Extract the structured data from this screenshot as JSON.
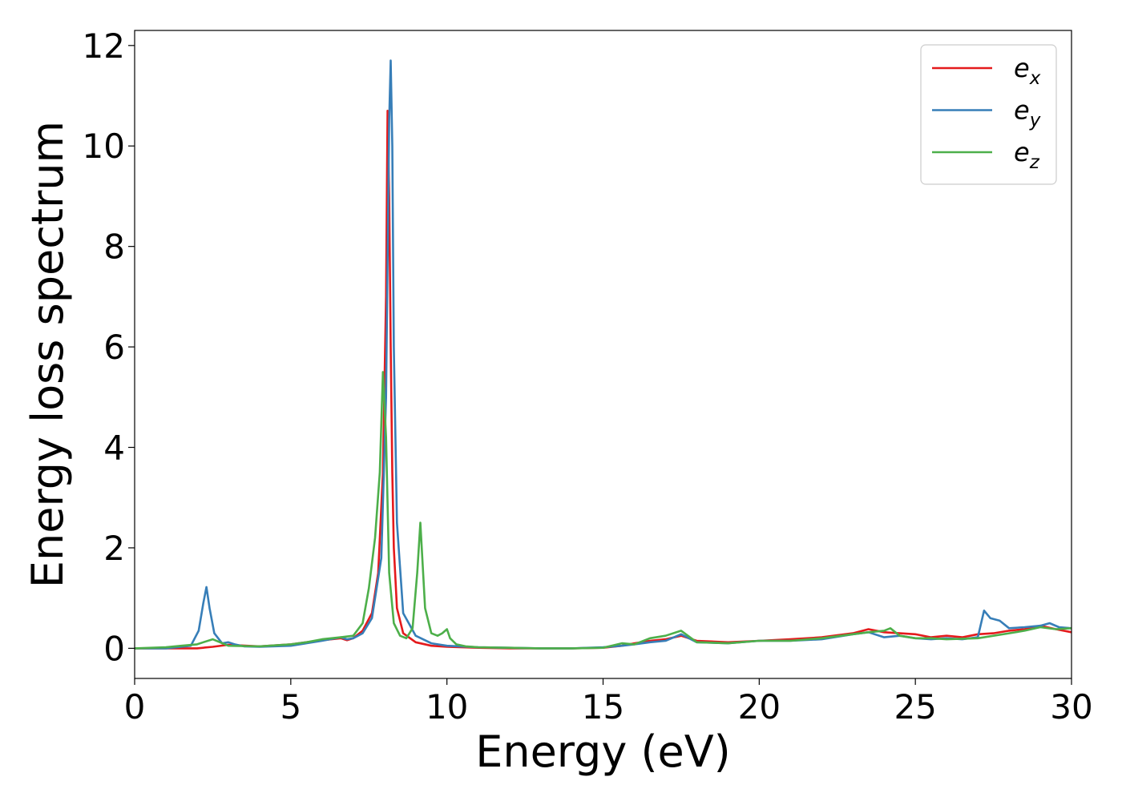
{
  "chart_data": {
    "type": "line",
    "title": "",
    "xlabel": "Energy (eV)",
    "ylabel": "Energy loss spectrum",
    "xlim": [
      0,
      30
    ],
    "ylim": [
      -0.6,
      12.3
    ],
    "xticks": [
      0,
      5,
      10,
      15,
      20,
      25,
      30
    ],
    "yticks": [
      0,
      2,
      4,
      6,
      8,
      10,
      12
    ],
    "grid": false,
    "legend_position": "top-right",
    "series": [
      {
        "name": "e",
        "subscript": "x",
        "color": "#e41a1c",
        "x": [
          0,
          1,
          2,
          2.5,
          3,
          4,
          5,
          5.5,
          6,
          6.6,
          6.8,
          7,
          7.3,
          7.6,
          7.8,
          7.95,
          8.05,
          8.1,
          8.15,
          8.2,
          8.25,
          8.3,
          8.4,
          8.6,
          9,
          9.5,
          10,
          11,
          12,
          13,
          14,
          15,
          15.6,
          16,
          16.5,
          17,
          17.5,
          18,
          19,
          20,
          21,
          22,
          23,
          23.5,
          24,
          24.5,
          25,
          25.5,
          26,
          26.5,
          27,
          27.5,
          28,
          28.5,
          29,
          29.5,
          30
        ],
        "y": [
          0,
          0,
          0,
          0.03,
          0.07,
          0.04,
          0.08,
          0.12,
          0.16,
          0.2,
          0.16,
          0.2,
          0.35,
          0.7,
          1.5,
          3.5,
          7,
          10.7,
          9,
          6,
          3.5,
          2,
          0.8,
          0.3,
          0.12,
          0.05,
          0.03,
          0.01,
          0,
          0,
          0,
          0.01,
          0.05,
          0.1,
          0.15,
          0.18,
          0.25,
          0.15,
          0.12,
          0.15,
          0.18,
          0.22,
          0.3,
          0.38,
          0.32,
          0.3,
          0.28,
          0.22,
          0.25,
          0.22,
          0.28,
          0.3,
          0.35,
          0.38,
          0.45,
          0.38,
          0.32
        ]
      },
      {
        "name": "e",
        "subscript": "y",
        "color": "#377eb8",
        "x": [
          0,
          1,
          1.8,
          2.05,
          2.2,
          2.3,
          2.4,
          2.55,
          2.8,
          3,
          3.2,
          3.5,
          4,
          5,
          5.5,
          6,
          6.6,
          6.8,
          7,
          7.3,
          7.6,
          7.9,
          8.05,
          8.15,
          8.2,
          8.25,
          8.3,
          8.4,
          8.6,
          9,
          9.5,
          10,
          11,
          12,
          13,
          14,
          15,
          15.6,
          16,
          16.5,
          17,
          17.5,
          18,
          19,
          20,
          21,
          22,
          23,
          23.5,
          24,
          24.5,
          25,
          25.5,
          26,
          26.5,
          27,
          27.2,
          27.4,
          27.7,
          28,
          28.5,
          29,
          29.3,
          29.6,
          30
        ],
        "y": [
          0,
          0,
          0.05,
          0.35,
          0.9,
          1.22,
          0.8,
          0.3,
          0.1,
          0.12,
          0.08,
          0.04,
          0.03,
          0.05,
          0.1,
          0.15,
          0.22,
          0.18,
          0.2,
          0.3,
          0.6,
          1.8,
          5,
          10.5,
          11.7,
          10,
          6,
          2.5,
          0.7,
          0.25,
          0.1,
          0.05,
          0.02,
          0.01,
          0,
          0,
          0.02,
          0.05,
          0.08,
          0.12,
          0.15,
          0.28,
          0.12,
          0.1,
          0.15,
          0.15,
          0.18,
          0.28,
          0.32,
          0.22,
          0.25,
          0.2,
          0.18,
          0.2,
          0.18,
          0.22,
          0.75,
          0.6,
          0.55,
          0.4,
          0.42,
          0.45,
          0.5,
          0.42,
          0.4
        ]
      },
      {
        "name": "e",
        "subscript": "z",
        "color": "#4daf4a",
        "x": [
          0,
          1,
          1.5,
          2,
          2.2,
          2.5,
          3,
          4,
          5,
          5.5,
          6,
          6.6,
          7,
          7.3,
          7.5,
          7.7,
          7.85,
          7.95,
          8.05,
          8.15,
          8.3,
          8.5,
          8.7,
          8.9,
          9.05,
          9.15,
          9.3,
          9.5,
          9.7,
          9.85,
          10,
          10.1,
          10.3,
          10.6,
          11,
          12,
          13,
          14,
          15,
          15.6,
          16,
          16.5,
          17,
          17.5,
          18,
          19,
          20,
          21,
          22,
          23,
          23.5,
          24,
          24.2,
          24.5,
          25,
          25.5,
          26,
          27,
          28,
          28.5,
          29,
          29.5,
          30
        ],
        "y": [
          0,
          0.02,
          0.05,
          0.08,
          0.12,
          0.18,
          0.05,
          0.04,
          0.08,
          0.12,
          0.18,
          0.22,
          0.25,
          0.5,
          1.2,
          2.2,
          3.5,
          5.5,
          4.2,
          1.5,
          0.5,
          0.25,
          0.2,
          0.4,
          1.5,
          2.5,
          0.8,
          0.3,
          0.25,
          0.3,
          0.38,
          0.2,
          0.08,
          0.04,
          0.02,
          0.01,
          0,
          0,
          0.01,
          0.1,
          0.08,
          0.2,
          0.25,
          0.35,
          0.12,
          0.1,
          0.15,
          0.15,
          0.2,
          0.28,
          0.32,
          0.35,
          0.4,
          0.25,
          0.2,
          0.2,
          0.18,
          0.2,
          0.3,
          0.35,
          0.42,
          0.38,
          0.4
        ]
      }
    ]
  }
}
